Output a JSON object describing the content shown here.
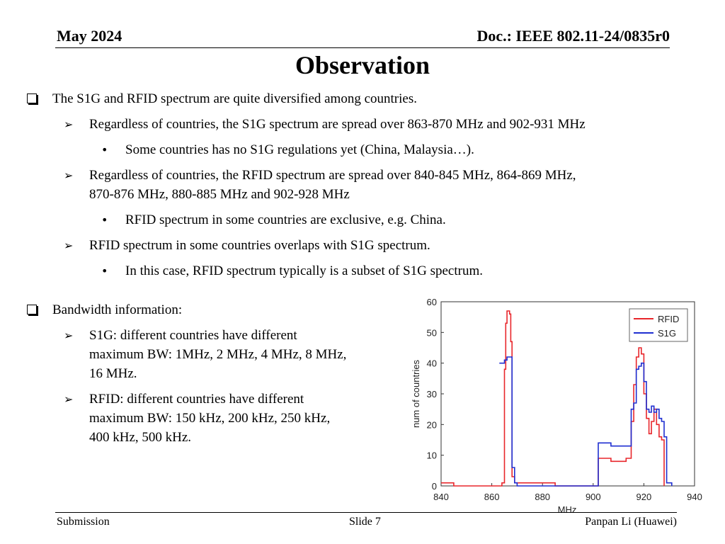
{
  "header": {
    "date": "May 2024",
    "doc": "Doc.: IEEE 802.11-24/0835r0"
  },
  "title": "Observation",
  "bullets": {
    "b1": "The S1G and RFID spectrum are quite diversified among countries.",
    "b1_1": "Regardless of countries, the S1G spectrum are spread over 863-870 MHz and 902-931 MHz",
    "b1_1_1": "Some countries has no S1G regulations yet (China, Malaysia…).",
    "b1_2a": "Regardless of countries, the RFID spectrum are spread over 840-845 MHz, 864-869 MHz,",
    "b1_2b": "870-876 MHz, 880-885 MHz and 902-928 MHz",
    "b1_2_1": "RFID spectrum in some countries are exclusive, e.g. China.",
    "b1_3": "RFID spectrum in some countries overlaps with S1G spectrum.",
    "b1_3_1": "In this case, RFID spectrum typically is a subset of S1G spectrum.",
    "b2": "Bandwidth information:",
    "b2_1a": "S1G: different countries have different",
    "b2_1b": "maximum BW: 1MHz, 2 MHz, 4 MHz, 8 MHz,",
    "b2_1c": "16 MHz.",
    "b2_2a": "RFID: different countries have different",
    "b2_2b": "maximum BW: 150 kHz, 200 kHz, 250 kHz,",
    "b2_2c": "400 kHz, 500 kHz."
  },
  "footer": {
    "left": "Submission",
    "center": "Slide 7",
    "right": "Panpan Li (Huawei)"
  },
  "chart_data": {
    "type": "line",
    "xlabel": "MHz",
    "ylabel": "num of countries",
    "xlim": [
      840,
      940
    ],
    "ylim": [
      0,
      60
    ],
    "xticks": [
      840,
      860,
      880,
      900,
      920,
      940
    ],
    "yticks": [
      0,
      10,
      20,
      30,
      40,
      50,
      60
    ],
    "legend_position": "top-right",
    "series": [
      {
        "name": "RFID",
        "color": "#e8262b",
        "points": [
          [
            840,
            1
          ],
          [
            845,
            1
          ],
          [
            845,
            0
          ],
          [
            864,
            0
          ],
          [
            864,
            1
          ],
          [
            865,
            1
          ],
          [
            865,
            38
          ],
          [
            865.5,
            38
          ],
          [
            865.5,
            53
          ],
          [
            866,
            53
          ],
          [
            866,
            57
          ],
          [
            867,
            57
          ],
          [
            867,
            56
          ],
          [
            867.5,
            56
          ],
          [
            867.5,
            47
          ],
          [
            868,
            47
          ],
          [
            868,
            3
          ],
          [
            869,
            3
          ],
          [
            869,
            1
          ],
          [
            870,
            1
          ],
          [
            870,
            1
          ],
          [
            876,
            1
          ],
          [
            876,
            1
          ],
          [
            880,
            1
          ],
          [
            880,
            1
          ],
          [
            885,
            1
          ],
          [
            885,
            0
          ],
          [
            902,
            0
          ],
          [
            902,
            9
          ],
          [
            907,
            9
          ],
          [
            907,
            8
          ],
          [
            913,
            8
          ],
          [
            913,
            9
          ],
          [
            915,
            9
          ],
          [
            915,
            21
          ],
          [
            916,
            21
          ],
          [
            916,
            33
          ],
          [
            917,
            33
          ],
          [
            917,
            42
          ],
          [
            918,
            42
          ],
          [
            918,
            45
          ],
          [
            919,
            45
          ],
          [
            919,
            43
          ],
          [
            920,
            43
          ],
          [
            920,
            30
          ],
          [
            921,
            30
          ],
          [
            921,
            22
          ],
          [
            922,
            22
          ],
          [
            922,
            17
          ],
          [
            923,
            17
          ],
          [
            923,
            21
          ],
          [
            924,
            21
          ],
          [
            924,
            25
          ],
          [
            925,
            25
          ],
          [
            925,
            20
          ],
          [
            926,
            20
          ],
          [
            926,
            16
          ],
          [
            927,
            16
          ],
          [
            927,
            15
          ],
          [
            928,
            15
          ],
          [
            928,
            0
          ]
        ]
      },
      {
        "name": "S1G",
        "color": "#1f2fd1",
        "points": [
          [
            863,
            40
          ],
          [
            864,
            40
          ],
          [
            864,
            40
          ],
          [
            865,
            40
          ],
          [
            865,
            41
          ],
          [
            866,
            41
          ],
          [
            866,
            42
          ],
          [
            868,
            42
          ],
          [
            868,
            6
          ],
          [
            869,
            6
          ],
          [
            869,
            1
          ],
          [
            870,
            1
          ],
          [
            870,
            0
          ],
          [
            902,
            0
          ],
          [
            902,
            14
          ],
          [
            907,
            14
          ],
          [
            907,
            13
          ],
          [
            915,
            13
          ],
          [
            915,
            25
          ],
          [
            916,
            25
          ],
          [
            916,
            27
          ],
          [
            917,
            27
          ],
          [
            917,
            38
          ],
          [
            918,
            38
          ],
          [
            918,
            39
          ],
          [
            919,
            39
          ],
          [
            919,
            40
          ],
          [
            920,
            40
          ],
          [
            920,
            34
          ],
          [
            921,
            34
          ],
          [
            921,
            25
          ],
          [
            922,
            25
          ],
          [
            922,
            24
          ],
          [
            923,
            24
          ],
          [
            923,
            26
          ],
          [
            924,
            26
          ],
          [
            924,
            24
          ],
          [
            925,
            24
          ],
          [
            925,
            25
          ],
          [
            926,
            25
          ],
          [
            926,
            22
          ],
          [
            927,
            22
          ],
          [
            927,
            21
          ],
          [
            928,
            21
          ],
          [
            928,
            16
          ],
          [
            929,
            16
          ],
          [
            929,
            1
          ],
          [
            931,
            1
          ],
          [
            931,
            0
          ]
        ]
      }
    ]
  }
}
